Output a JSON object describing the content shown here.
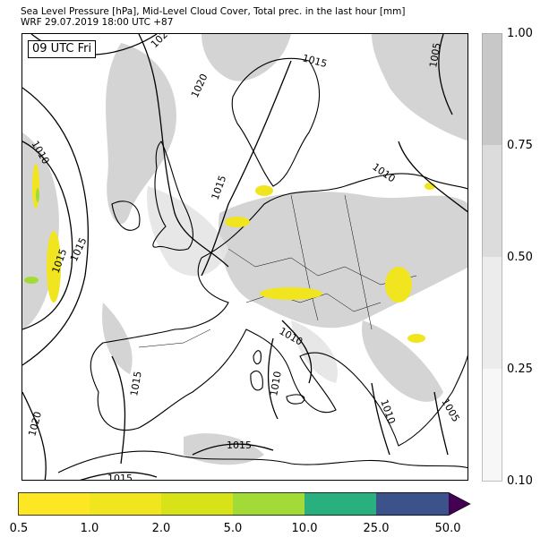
{
  "header": {
    "line1": "Sea Level Pressure [hPa], Mid-Level Cloud Cover, Total prec. in the last hour [mm]",
    "line2": "WRF 29.07.2019 18:00 UTC +87"
  },
  "map": {
    "time_label": "09 UTC Fri",
    "isobar_labels": [
      "1025",
      "1015",
      "1005",
      "1020",
      "1010",
      "1015",
      "1010",
      "1015",
      "1010",
      "1015",
      "1010",
      "1010",
      "1005",
      "1015",
      "1020",
      "1015",
      "1015"
    ]
  },
  "cloud_colorbar": {
    "ticks": [
      "1.00",
      "0.75",
      "0.50",
      "0.25",
      "0.10"
    ],
    "colors": [
      "#c8c8c8",
      "#dcdcdc",
      "#ececec",
      "#f7f7f7"
    ]
  },
  "precip_colorbar": {
    "ticks": [
      "0.5",
      "1.0",
      "2.0",
      "5.0",
      "10.0",
      "25.0",
      "50.0"
    ],
    "colors": [
      "#fde725",
      "#f0e51e",
      "#d7e219",
      "#a2da37",
      "#2ab07f",
      "#3b528b",
      "#440154"
    ]
  }
}
